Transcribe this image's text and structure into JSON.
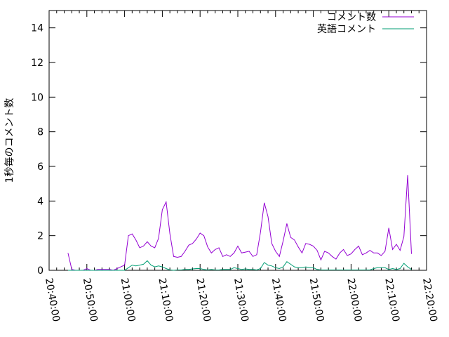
{
  "chart_data": {
    "type": "line",
    "title": "",
    "xlabel": "",
    "ylabel": "1秒毎のコメント数",
    "ylim": [
      0,
      15
    ],
    "yticks": [
      0,
      2,
      4,
      6,
      8,
      10,
      12,
      14
    ],
    "xlim": [
      "20:40:00",
      "22:20:00"
    ],
    "xticks": [
      "20:40:00",
      "20:50:00",
      "21:00:00",
      "21:10:00",
      "21:20:00",
      "21:30:00",
      "21:40:00",
      "21:50:00",
      "22:00:00",
      "22:10:00",
      "22:20:00"
    ],
    "grid": false,
    "legend_position": "top-right",
    "x": [
      "20:45:00",
      "20:46:00",
      "20:47:00",
      "20:48:00",
      "20:49:00",
      "20:50:00",
      "20:51:00",
      "20:52:00",
      "20:53:00",
      "20:54:00",
      "20:55:00",
      "20:56:00",
      "20:57:00",
      "20:58:00",
      "20:59:00",
      "21:00:00",
      "21:01:00",
      "21:02:00",
      "21:03:00",
      "21:04:00",
      "21:05:00",
      "21:06:00",
      "21:07:00",
      "21:08:00",
      "21:09:00",
      "21:10:00",
      "21:11:00",
      "21:12:00",
      "21:13:00",
      "21:14:00",
      "21:15:00",
      "21:16:00",
      "21:17:00",
      "21:18:00",
      "21:19:00",
      "21:20:00",
      "21:21:00",
      "21:22:00",
      "21:23:00",
      "21:24:00",
      "21:25:00",
      "21:26:00",
      "21:27:00",
      "21:28:00",
      "21:29:00",
      "21:30:00",
      "21:31:00",
      "21:32:00",
      "21:33:00",
      "21:34:00",
      "21:35:00",
      "21:36:00",
      "21:37:00",
      "21:38:00",
      "21:39:00",
      "21:40:00",
      "21:41:00",
      "21:42:00",
      "21:43:00",
      "21:44:00",
      "21:45:00",
      "21:46:00",
      "21:47:00",
      "21:48:00",
      "21:49:00",
      "21:50:00",
      "21:51:00",
      "21:52:00",
      "21:53:00",
      "21:54:00",
      "21:55:00",
      "21:56:00",
      "21:57:00",
      "21:58:00",
      "21:59:00",
      "22:00:00",
      "22:01:00",
      "22:02:00",
      "22:03:00",
      "22:04:00",
      "22:05:00",
      "22:06:00",
      "22:07:00",
      "22:08:00",
      "22:09:00",
      "22:10:00",
      "22:11:00",
      "22:12:00",
      "22:13:00",
      "22:14:00",
      "22:15:00",
      "22:16:00"
    ],
    "series": [
      {
        "name": "コメント数",
        "color": "#9400d3",
        "values": [
          1.0,
          0.05,
          0,
          0,
          0,
          0.1,
          0,
          0,
          0.05,
          0.05,
          0.05,
          0.05,
          0,
          0.1,
          0.2,
          0.3,
          2.0,
          2.1,
          1.75,
          1.3,
          1.4,
          1.65,
          1.4,
          1.3,
          1.85,
          3.5,
          3.95,
          2.1,
          0.8,
          0.75,
          0.8,
          1.1,
          1.45,
          1.55,
          1.8,
          2.15,
          2.0,
          1.35,
          1.0,
          1.2,
          1.3,
          0.8,
          0.9,
          0.8,
          1.0,
          1.4,
          1.0,
          1.05,
          1.1,
          0.8,
          0.9,
          2.2,
          3.9,
          3.1,
          1.55,
          1.1,
          0.8,
          1.7,
          2.7,
          1.9,
          1.75,
          1.35,
          1.0,
          1.55,
          1.5,
          1.4,
          1.15,
          0.6,
          1.1,
          1.0,
          0.8,
          0.65,
          1.0,
          1.2,
          0.85,
          0.95,
          1.2,
          1.4,
          0.9,
          1.0,
          1.15,
          1.0,
          1.0,
          0.85,
          1.1,
          2.45,
          1.2,
          1.5,
          1.15,
          1.95,
          5.5,
          0.95
        ]
      },
      {
        "name": "英語コメント",
        "color": "#009e73",
        "values": [
          0,
          0,
          0,
          0,
          0,
          0,
          0,
          0,
          0,
          0,
          0,
          0,
          0,
          0,
          0,
          0,
          0.15,
          0.3,
          0.25,
          0.3,
          0.35,
          0.55,
          0.3,
          0.2,
          0.25,
          0.2,
          0.1,
          0.02,
          0,
          0.02,
          0.02,
          0.05,
          0.05,
          0.08,
          0.1,
          0.1,
          0.05,
          0.02,
          0.05,
          0.02,
          0.02,
          0.05,
          0.05,
          0.05,
          0.15,
          0.1,
          0.05,
          0.08,
          0.05,
          0.05,
          0.02,
          0.1,
          0.45,
          0.3,
          0.25,
          0.15,
          0.1,
          0.2,
          0.5,
          0.35,
          0.2,
          0.15,
          0.15,
          0.2,
          0.15,
          0.15,
          0.05,
          0.02,
          0.02,
          0.02,
          0.02,
          0.02,
          0.02,
          0.02,
          0.02,
          0.02,
          0.02,
          0.02,
          0.02,
          0.02,
          0.02,
          0.1,
          0.15,
          0.15,
          0.15,
          0.05,
          0.1,
          0.05,
          0.1,
          0.4,
          0.2,
          0.05
        ]
      }
    ]
  }
}
